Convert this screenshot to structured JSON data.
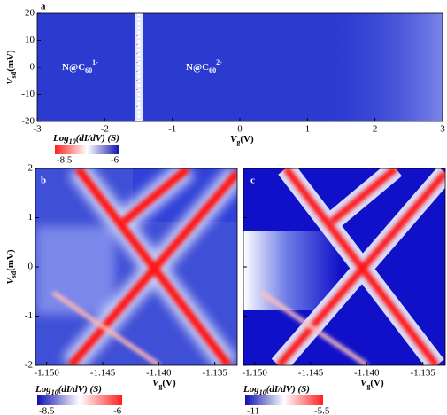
{
  "chart_data": [
    {
      "type": "heatmap",
      "panel": "a",
      "xlabel": {
        "symbol": "V",
        "sub": "g",
        "unit": "(V)"
      },
      "ylabel": {
        "symbol": "V",
        "sub": "sd",
        "unit": "(mV)"
      },
      "xlim": [
        -3,
        3
      ],
      "xticks": [
        -3,
        -2,
        -1,
        0,
        1,
        2,
        3
      ],
      "ylim": [
        -20,
        20
      ],
      "yticks": [
        -20,
        -10,
        0,
        10,
        20
      ],
      "annotations": [
        {
          "text": "N@C",
          "sub": "60",
          "sup": "1-"
        },
        {
          "text": "N@C",
          "sub": "60",
          "sup": "2-"
        }
      ],
      "colorbar": {
        "label": {
          "pre": "Log",
          "sub": "10",
          "post": "(dI/dV) (S)"
        },
        "ticks": [
          -8.5,
          -6
        ],
        "colors": [
          "#ff2020",
          "#ffffff",
          "#1010b0"
        ]
      }
    },
    {
      "type": "heatmap",
      "panel": "b",
      "xlabel": {
        "symbol": "V",
        "sub": "g",
        "unit": "(V)"
      },
      "ylabel": {
        "symbol": "V",
        "sub": "sd",
        "unit": "(mV)"
      },
      "xlim": [
        -1.151,
        -1.133
      ],
      "xticks": [
        {
          "value": -1.15,
          "label": "-1.150"
        },
        {
          "value": -1.145,
          "label": "-1.145"
        },
        {
          "value": -1.14,
          "label": "-1.140"
        },
        -1.135
      ],
      "ylim": [
        -2,
        2
      ],
      "yticks": [
        -2,
        -1,
        0,
        1,
        2
      ],
      "colorbar": {
        "label": {
          "pre": "Log",
          "sub": "10",
          "post": "(dI/dV) (S)"
        },
        "ticks": [
          -8.5,
          -6
        ],
        "colors": [
          "#1010b0",
          "#ffffff",
          "#ff2020"
        ]
      }
    },
    {
      "type": "heatmap",
      "panel": "c",
      "xlabel": {
        "symbol": "V",
        "sub": "g",
        "unit": "(V)"
      },
      "xlim": [
        -1.151,
        -1.133
      ],
      "xticks": [
        {
          "value": -1.15,
          "label": "-1.150"
        },
        {
          "value": -1.145,
          "label": "-1.145"
        },
        {
          "value": -1.14,
          "label": "-1.140"
        },
        -1.135
      ],
      "ylim": [
        -2,
        2
      ],
      "yticks": [
        -2,
        -1,
        0,
        1,
        2
      ],
      "colorbar": {
        "label": {
          "pre": "Log",
          "sub": "10",
          "post": "(dI/dV) (S)"
        },
        "ticks": [
          -11,
          -5.5
        ],
        "colors": [
          "#1010b0",
          "#ffffff",
          "#ff2020"
        ]
      }
    }
  ]
}
